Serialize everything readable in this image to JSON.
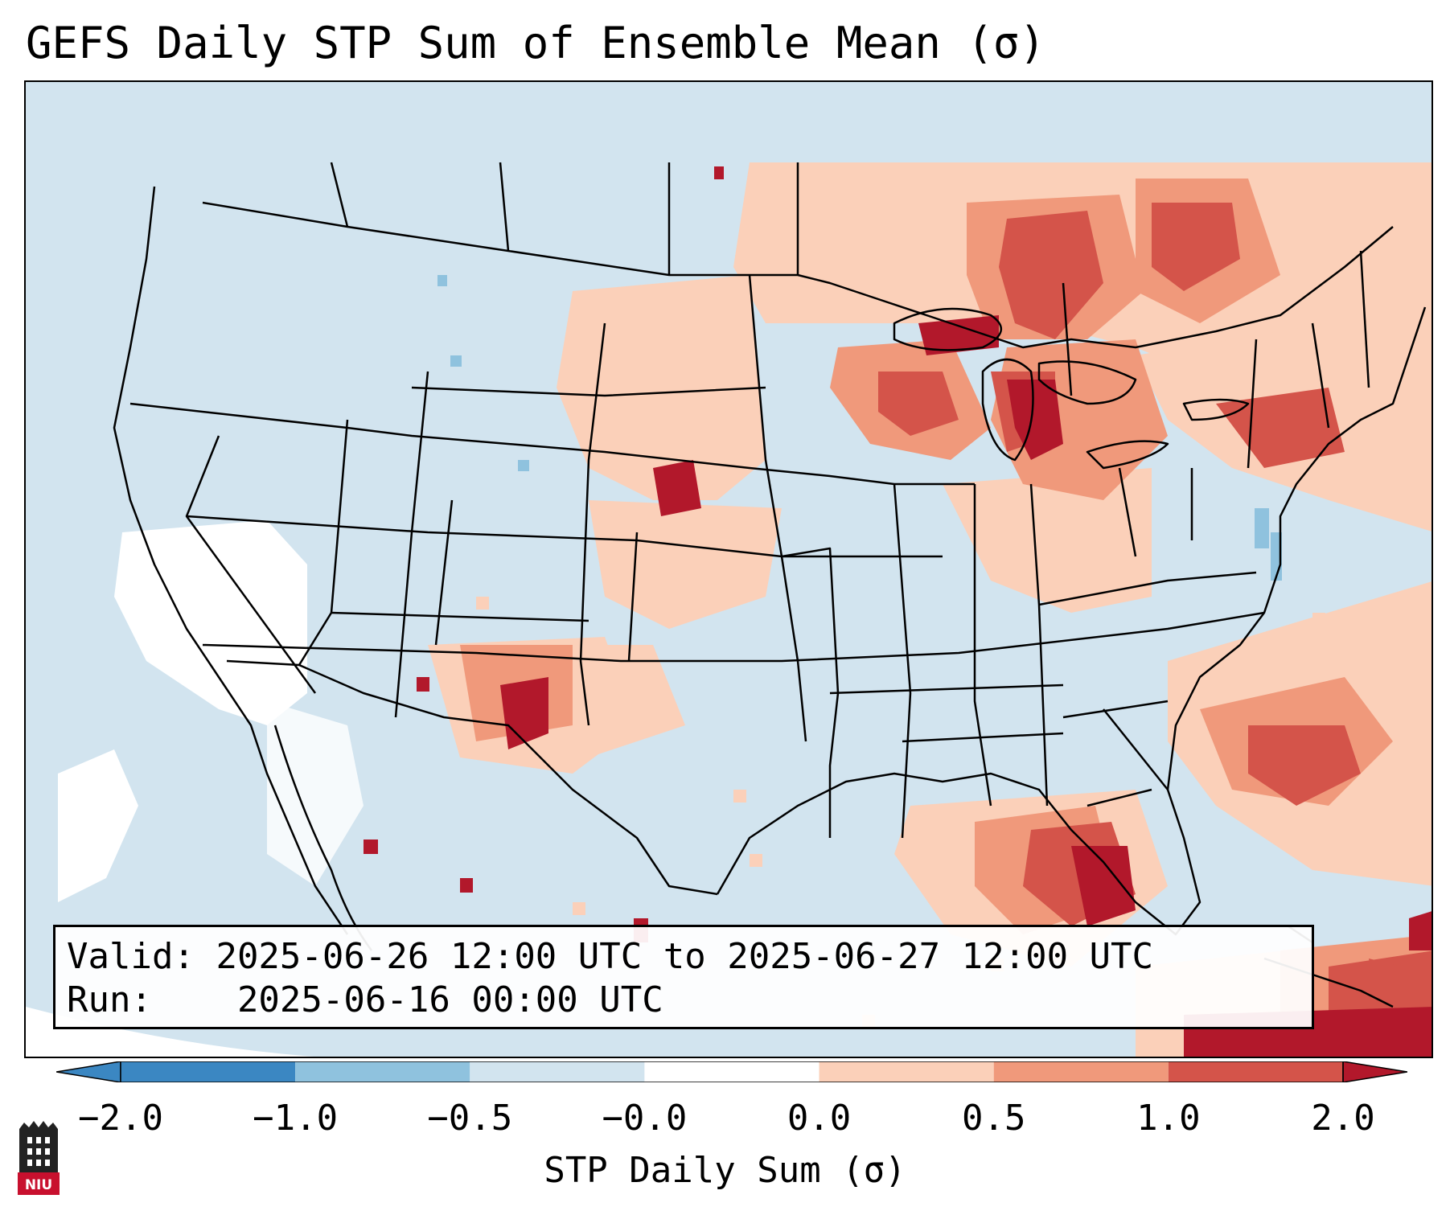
{
  "title": "GEFS Daily STP Sum of Ensemble Mean (σ)",
  "map": {
    "region": "Continental United States, northern Mexico, southern Canada",
    "field": "Daily STP sum standardized anomaly",
    "features": [
      "state-borders",
      "country-borders",
      "coastlines",
      "great-lakes"
    ]
  },
  "info": {
    "valid_label": "Valid:",
    "valid_value": "2025-06-26 12:00 UTC to 2025-06-27 12:00 UTC",
    "run_label": "Run:",
    "run_value": "2025-06-16 00:00 UTC"
  },
  "colorbar": {
    "label": "STP Daily Sum (σ)",
    "ticks": [
      "−2.0",
      "−1.0",
      "−0.5",
      "−0.0",
      "0.0",
      "0.5",
      "1.0",
      "2.0"
    ],
    "colors": [
      "#3b87c2",
      "#8fc2de",
      "#d2e4ef",
      "#ffffff",
      "#fbd0b9",
      "#f0997b",
      "#d4544a",
      "#b2182b"
    ],
    "extend": "both"
  },
  "logo": {
    "text": "NIU",
    "accent": "#c8102e"
  },
  "palette": {
    "neutral_negative": "#d2e4ef",
    "neutral_zero": "#ffffff",
    "weak_positive": "#fbd0b9",
    "moderate_positive": "#f0997b",
    "strong_positive": "#d4544a",
    "extreme_positive": "#b2182b",
    "weak_negative": "#8fc2de"
  }
}
